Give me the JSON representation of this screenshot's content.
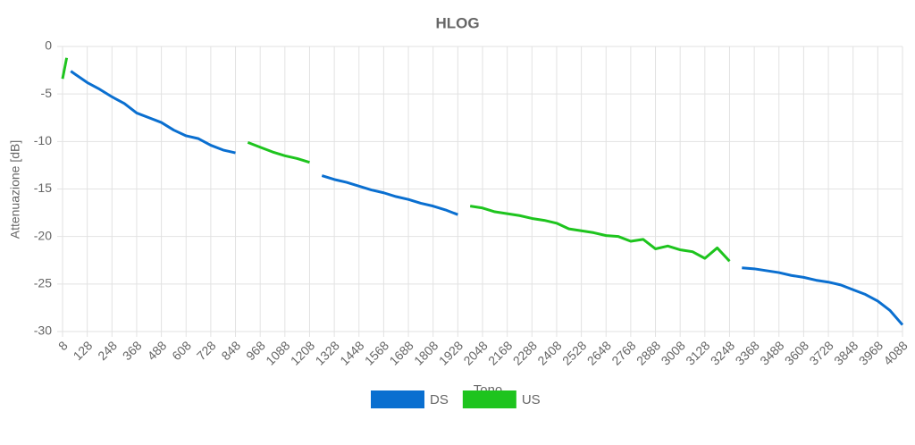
{
  "chart_data": {
    "type": "line",
    "title": "HLOG",
    "x_label": "Tono",
    "y_label": "Attenuazione [dB]",
    "x": [
      8,
      28,
      48,
      68,
      128,
      188,
      248,
      308,
      368,
      428,
      488,
      548,
      608,
      668,
      728,
      788,
      848,
      908,
      968,
      1028,
      1088,
      1148,
      1208,
      1268,
      1328,
      1388,
      1448,
      1508,
      1568,
      1628,
      1688,
      1748,
      1808,
      1868,
      1928,
      1988,
      2048,
      2108,
      2168,
      2228,
      2288,
      2348,
      2408,
      2468,
      2528,
      2588,
      2648,
      2708,
      2768,
      2828,
      2888,
      2948,
      3008,
      3068,
      3128,
      3188,
      3248,
      3308,
      3368,
      3428,
      3488,
      3548,
      3608,
      3668,
      3728,
      3788,
      3848,
      3908,
      3968,
      4028,
      4088
    ],
    "series": [
      {
        "name": "DS",
        "color": "#0a6fd0",
        "values": [
          null,
          null,
          -2.6,
          -2.9,
          -3.8,
          -4.5,
          -5.3,
          -6.0,
          -7.0,
          -7.5,
          -8.0,
          -8.8,
          -9.4,
          -9.7,
          -10.4,
          -10.9,
          -11.2,
          null,
          null,
          null,
          null,
          null,
          null,
          -13.6,
          -14.0,
          -14.3,
          -14.7,
          -15.1,
          -15.4,
          -15.8,
          -16.1,
          -16.5,
          -16.8,
          -17.2,
          -17.7,
          null,
          null,
          null,
          null,
          null,
          null,
          null,
          null,
          null,
          null,
          null,
          null,
          null,
          null,
          null,
          null,
          null,
          null,
          null,
          null,
          null,
          null,
          -23.3,
          -23.4,
          -23.6,
          -23.8,
          -24.1,
          -24.3,
          -24.6,
          -24.8,
          -25.1,
          -25.6,
          -26.1,
          -26.8,
          -27.8,
          -29.3
        ]
      },
      {
        "name": "US",
        "color": "#1ec41e",
        "values": [
          -3.4,
          -1.2,
          null,
          null,
          null,
          null,
          null,
          null,
          null,
          null,
          null,
          null,
          null,
          null,
          null,
          null,
          null,
          -10.1,
          -10.6,
          -11.1,
          -11.5,
          -11.8,
          -12.2,
          null,
          null,
          null,
          null,
          null,
          null,
          null,
          null,
          null,
          null,
          null,
          null,
          -16.8,
          -17.0,
          -17.4,
          -17.6,
          -17.8,
          -18.1,
          -18.3,
          -18.6,
          -19.2,
          -19.4,
          -19.6,
          -19.9,
          -20.0,
          -20.5,
          -20.3,
          -21.3,
          -21.0,
          -21.4,
          -21.6,
          -22.3,
          -21.2,
          -22.6,
          null,
          null,
          null,
          null,
          null,
          null,
          null,
          null,
          null,
          null,
          null,
          null,
          null,
          null
        ]
      }
    ],
    "xlim": [
      8,
      4088
    ],
    "xticks": [
      8,
      128,
      248,
      368,
      488,
      608,
      728,
      848,
      968,
      1088,
      1208,
      1328,
      1448,
      1568,
      1688,
      1808,
      1928,
      2048,
      2168,
      2288,
      2408,
      2528,
      2648,
      2768,
      2888,
      3008,
      3128,
      3248,
      3368,
      3488,
      3608,
      3728,
      3848,
      3968,
      4088
    ],
    "ylim": [
      -30,
      0
    ],
    "yticks": [
      -30,
      -25,
      -20,
      -15,
      -10,
      -5,
      0
    ],
    "grid": true,
    "legend": "bottom"
  }
}
